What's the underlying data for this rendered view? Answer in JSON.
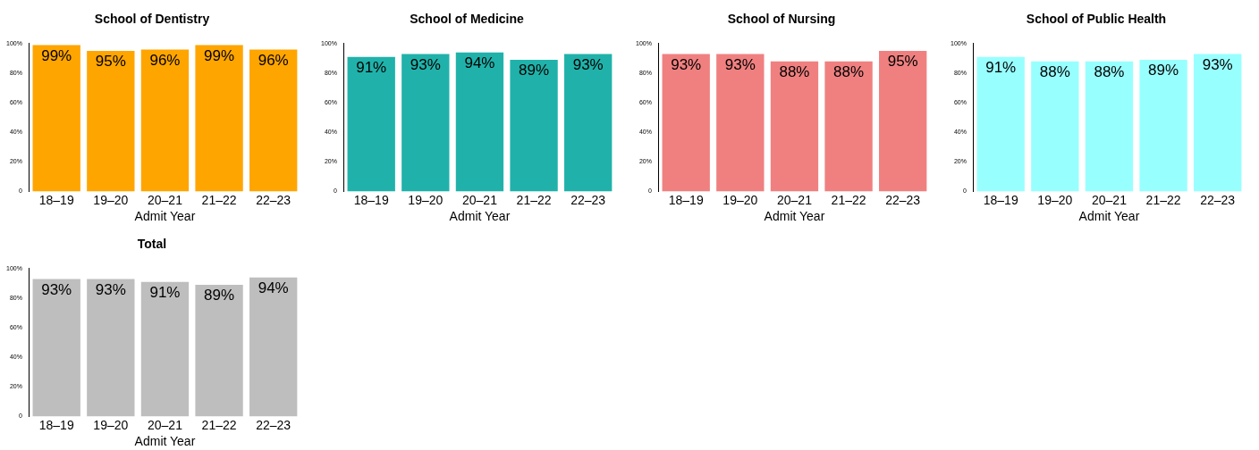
{
  "chart_data": [
    {
      "type": "bar",
      "title": "School of Dentistry",
      "xlabel": "Admit Year",
      "categories": [
        "18–19",
        "19–20",
        "20–21",
        "21–22",
        "22–23"
      ],
      "values": [
        99,
        95,
        96,
        99,
        96
      ],
      "value_labels": [
        "99%",
        "95%",
        "96%",
        "99%",
        "96%"
      ],
      "color": "#ffa500",
      "ylim": [
        0,
        100
      ],
      "yticks": [
        {
          "value": 0,
          "label": "0"
        },
        {
          "value": 20,
          "label": "20%"
        },
        {
          "value": 40,
          "label": "40%"
        },
        {
          "value": 60,
          "label": "60%"
        },
        {
          "value": 80,
          "label": "80%"
        },
        {
          "value": 100,
          "label": "100%"
        }
      ]
    },
    {
      "type": "bar",
      "title": "School of Medicine",
      "xlabel": "Admit Year",
      "categories": [
        "18–19",
        "19–20",
        "20–21",
        "21–22",
        "22–23"
      ],
      "values": [
        91,
        93,
        94,
        89,
        93
      ],
      "value_labels": [
        "91%",
        "93%",
        "94%",
        "89%",
        "93%"
      ],
      "color": "#20b2aa",
      "ylim": [
        0,
        100
      ],
      "yticks": [
        {
          "value": 0,
          "label": "0"
        },
        {
          "value": 20,
          "label": "20%"
        },
        {
          "value": 40,
          "label": "40%"
        },
        {
          "value": 60,
          "label": "60%"
        },
        {
          "value": 80,
          "label": "80%"
        },
        {
          "value": 100,
          "label": "100%"
        }
      ]
    },
    {
      "type": "bar",
      "title": "School of Nursing",
      "xlabel": "Admit Year",
      "categories": [
        "18–19",
        "19–20",
        "20–21",
        "21–22",
        "22–23"
      ],
      "values": [
        93,
        93,
        88,
        88,
        95
      ],
      "value_labels": [
        "93%",
        "93%",
        "88%",
        "88%",
        "95%"
      ],
      "color": "#f08080",
      "ylim": [
        0,
        100
      ],
      "yticks": [
        {
          "value": 0,
          "label": "0"
        },
        {
          "value": 20,
          "label": "20%"
        },
        {
          "value": 40,
          "label": "40%"
        },
        {
          "value": 60,
          "label": "60%"
        },
        {
          "value": 80,
          "label": "80%"
        },
        {
          "value": 100,
          "label": "100%"
        }
      ]
    },
    {
      "type": "bar",
      "title": "School of Public Health",
      "xlabel": "Admit Year",
      "categories": [
        "18–19",
        "19–20",
        "20–21",
        "21–22",
        "22–23"
      ],
      "values": [
        91,
        88,
        88,
        89,
        93
      ],
      "value_labels": [
        "91%",
        "88%",
        "88%",
        "89%",
        "93%"
      ],
      "color": "#98ffff",
      "ylim": [
        0,
        100
      ],
      "yticks": [
        {
          "value": 0,
          "label": "0"
        },
        {
          "value": 20,
          "label": "20%"
        },
        {
          "value": 40,
          "label": "40%"
        },
        {
          "value": 60,
          "label": "60%"
        },
        {
          "value": 80,
          "label": "80%"
        },
        {
          "value": 100,
          "label": "100%"
        }
      ]
    },
    {
      "type": "bar",
      "title": "Total",
      "xlabel": "Admit Year",
      "categories": [
        "18–19",
        "19–20",
        "20–21",
        "21–22",
        "22–23"
      ],
      "values": [
        93,
        93,
        91,
        89,
        94
      ],
      "value_labels": [
        "93%",
        "93%",
        "91%",
        "89%",
        "94%"
      ],
      "color": "#bebebe",
      "ylim": [
        0,
        100
      ],
      "yticks": [
        {
          "value": 0,
          "label": "0"
        },
        {
          "value": 20,
          "label": "20%"
        },
        {
          "value": 40,
          "label": "40%"
        },
        {
          "value": 60,
          "label": "60%"
        },
        {
          "value": 80,
          "label": "80%"
        },
        {
          "value": 100,
          "label": "100%"
        }
      ]
    }
  ]
}
